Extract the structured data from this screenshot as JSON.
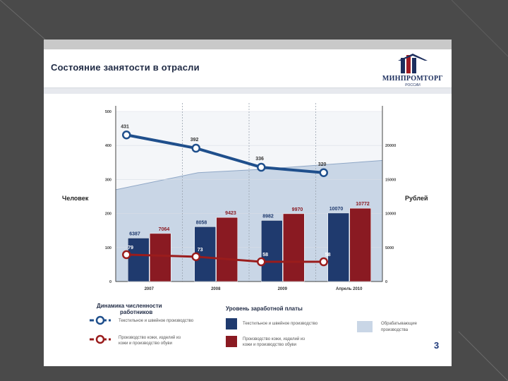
{
  "slide": {
    "title": "Состояние занятости в отрасли",
    "logo_name": "МИНПРОМТОРГ",
    "logo_sub": "РОССИИ",
    "page_number": "3"
  },
  "colors": {
    "navy": "#1f3a6e",
    "maroon": "#8a1a22",
    "area": "#c9d6e6",
    "line_blue": "#1f4f8c",
    "line_red": "#9a1c1c"
  },
  "chart_data": {
    "type": "bar",
    "categories": [
      "2007",
      "2008",
      "2009",
      "Апрель 2010"
    ],
    "left_axis": {
      "label": "Человек",
      "ticks": [
        "0",
        "100",
        "200",
        "300",
        "400",
        "500"
      ],
      "ylim": [
        0,
        500
      ]
    },
    "right_axis": {
      "label": "Рублей",
      "ticks": [
        "0",
        "5000",
        "10000",
        "15000",
        "20000"
      ],
      "ylim": [
        0,
        25000
      ]
    },
    "series": [
      {
        "name": "Текстильное и швейное производство",
        "kind": "bar",
        "axis": "right",
        "values": [
          6387,
          8058,
          8982,
          10070
        ],
        "labels": [
          "6387",
          "8058",
          "8982",
          "10070"
        ]
      },
      {
        "name": "Производство кожи, изделий из кожи и производство обуви",
        "kind": "bar",
        "axis": "right",
        "values": [
          7064,
          9423,
          9970,
          10772
        ],
        "labels": [
          "7064",
          "9423",
          "9970",
          "10772"
        ]
      },
      {
        "name": "Текстильное и швейное производство",
        "kind": "line",
        "axis": "left",
        "values": [
          431,
          392,
          336,
          320
        ],
        "labels": [
          "431",
          "392",
          "336",
          "320"
        ]
      },
      {
        "name": "Производство кожи, изделий из кожи и производство обуви",
        "kind": "line",
        "axis": "left",
        "values": [
          79,
          73,
          58,
          58
        ],
        "labels": [
          "79",
          "73",
          "58",
          "58"
        ]
      },
      {
        "name": "Обрабатывающие производства",
        "kind": "area",
        "axis": "right",
        "values": [
          13500,
          16000,
          16500,
          17800
        ]
      }
    ],
    "legend": {
      "left_title": "Динамика численности работников",
      "middle_title": "Уровень заработной платы",
      "items": {
        "textile_line": "Текстильное и швейное производство",
        "leather_line": "Производство кожи, изделий из кожи и производство обуви",
        "textile_bar": "Текстильное и швейное производство",
        "leather_bar": "Производство кожи, изделий из кожи и производство обуви",
        "area": "Обрабатывающие производства"
      }
    }
  }
}
